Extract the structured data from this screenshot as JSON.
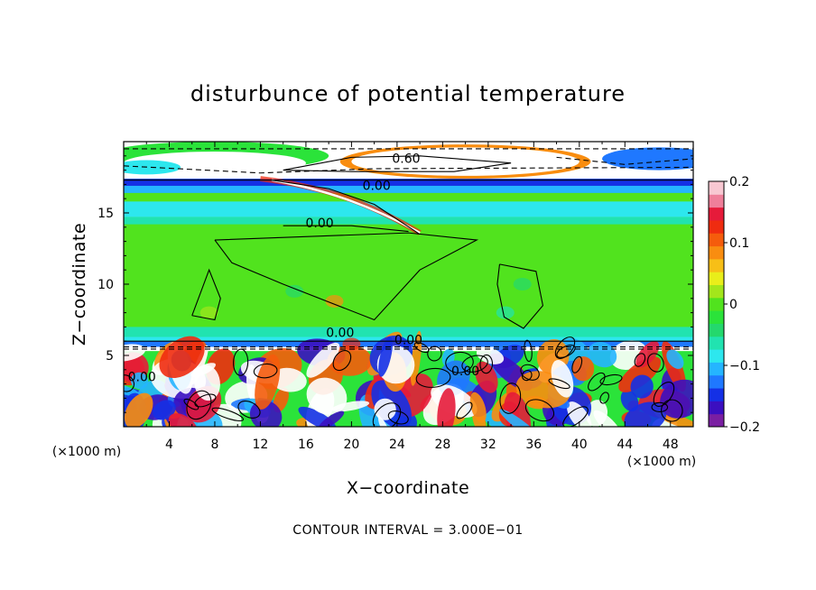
{
  "chart_data": {
    "type": "heatmap",
    "title": "disturbunce of potential temperature",
    "xlabel": "X−coordinate",
    "ylabel": "Z−coordinate",
    "x_unit": "(×1000 m)",
    "x_unit_right": "(×1000 m)",
    "xlim": [
      0,
      50
    ],
    "ylim": [
      0,
      20
    ],
    "x_ticks": [
      4,
      8,
      12,
      16,
      20,
      24,
      28,
      32,
      36,
      40,
      44,
      48
    ],
    "y_ticks": [
      5,
      10,
      15
    ],
    "colorbar": {
      "range": [
        -0.2,
        0.2
      ],
      "ticks": [
        {
          "value": 0.2,
          "label": "0.2"
        },
        {
          "value": 0.1,
          "label": "0.1"
        },
        {
          "value": 0,
          "label": "0"
        },
        {
          "value": -0.1,
          "label": "−0.1"
        },
        {
          "value": -0.2,
          "label": "−0.2"
        }
      ],
      "colors": [
        "#7a1fa2",
        "#3b0fc0",
        "#1430e6",
        "#1f78ff",
        "#25b5ff",
        "#2de7ee",
        "#21e3b0",
        "#24d86d",
        "#2be33a",
        "#51e31e",
        "#a3e61b",
        "#e9ee1a",
        "#f7bf17",
        "#f98d10",
        "#f55c0c",
        "#ef2c10",
        "#e61b3a",
        "#ef7f9a",
        "#f8c8d2"
      ]
    },
    "contour_labels": [
      {
        "x": 24.8,
        "y": 18.5,
        "text": "0.60"
      },
      {
        "x": 22.2,
        "y": 16.6,
        "text": "0.00"
      },
      {
        "x": 17.2,
        "y": 14.0,
        "text": "0.00"
      },
      {
        "x": 19.0,
        "y": 6.3,
        "text": "0.00"
      },
      {
        "x": 25.0,
        "y": 5.8,
        "text": "0.00"
      },
      {
        "x": 30.0,
        "y": 3.6,
        "text": "0.00"
      },
      {
        "x": 1.6,
        "y": 3.2,
        "text": "0.00"
      }
    ],
    "footer": "CONTOUR INTERVAL =   3.000E−01"
  }
}
